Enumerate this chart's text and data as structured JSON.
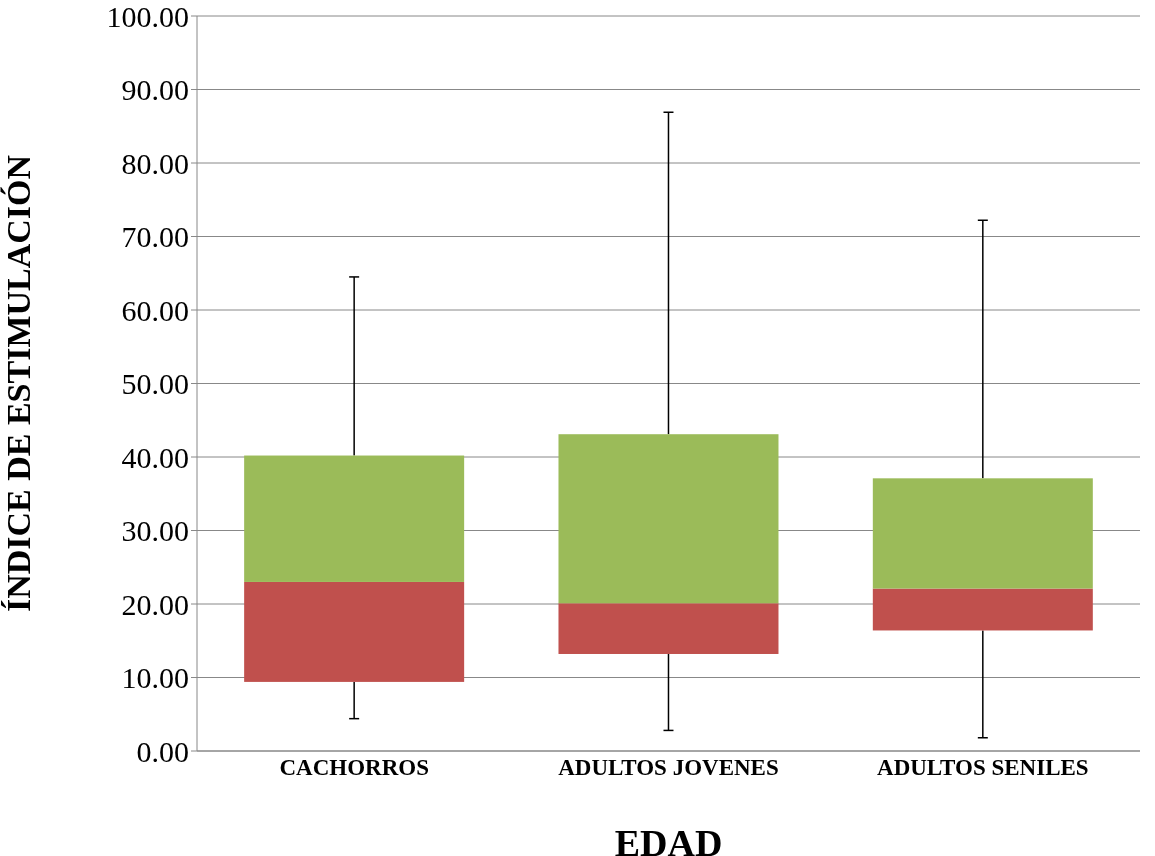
{
  "chart_data": {
    "type": "box",
    "xlabel": "EDAD",
    "ylabel": "ÍNDICE DE ESTIMULACIÓN",
    "categories": [
      "CACHORROS",
      "ADULTOS JOVENES",
      "ADULTOS SENILES"
    ],
    "boxes": [
      {
        "low": 4.4,
        "q1": 9.4,
        "median": 23.0,
        "q3": 40.2,
        "high": 64.5
      },
      {
        "low": 2.8,
        "q1": 13.2,
        "median": 20.1,
        "q3": 43.1,
        "high": 86.9
      },
      {
        "low": 1.8,
        "q1": 16.4,
        "median": 22.1,
        "q3": 37.1,
        "high": 72.2
      }
    ],
    "color": "#9bbb59",
    "colors": [
      "#c0504d",
      "#c0504d",
      "#c0504d"
    ],
    "ylim": [
      0,
      100
    ],
    "yticks": [
      {
        "value": 0,
        "label": "0.00"
      },
      {
        "value": 10,
        "label": "10.00"
      },
      {
        "value": 20,
        "label": "20.00"
      },
      {
        "value": 30,
        "label": "30.00"
      },
      {
        "value": 40,
        "label": "40.00"
      },
      {
        "value": 50,
        "label": "50.00"
      },
      {
        "value": 60,
        "label": "60.00"
      },
      {
        "value": 70,
        "label": "70.00"
      },
      {
        "value": 80,
        "label": "80.00"
      },
      {
        "value": 90,
        "label": "90.00"
      },
      {
        "value": 100,
        "label": "100.00"
      }
    ],
    "grid": "y"
  }
}
